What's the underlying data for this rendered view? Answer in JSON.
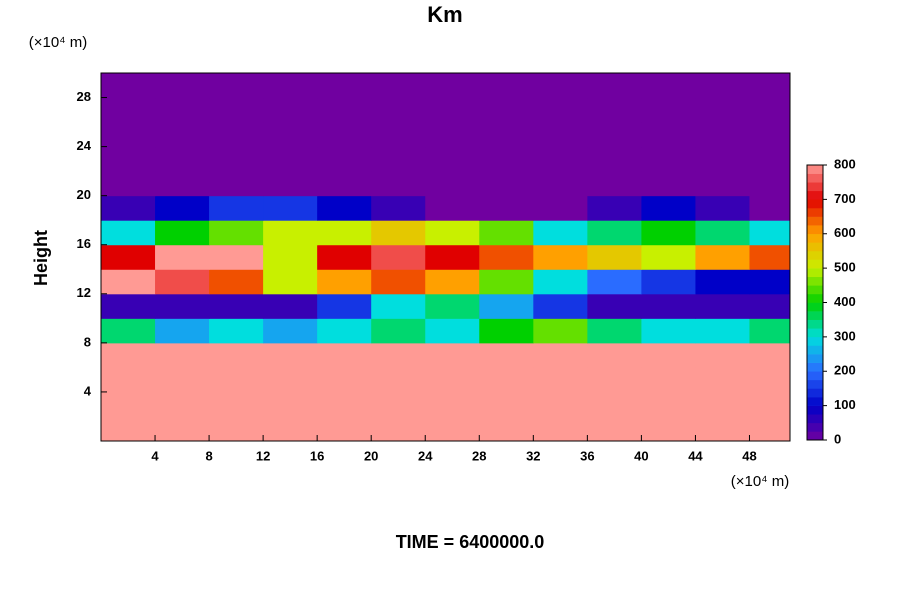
{
  "chart_data": {
    "type": "heatmap",
    "title": "Km",
    "x_unit": "(×10⁴ m)",
    "y_unit": "(×10⁴ m)",
    "y_label": "Height",
    "footer": "TIME = 6400000.0",
    "xlim": [
      0,
      51
    ],
    "xticks": [
      4,
      8,
      12,
      16,
      20,
      24,
      28,
      32,
      36,
      40,
      44,
      48
    ],
    "ylim": [
      0,
      30
    ],
    "yticks": [
      4,
      8,
      12,
      16,
      20,
      24,
      28
    ],
    "x_edges": [
      0,
      4,
      8,
      12,
      16,
      20,
      24,
      28,
      32,
      36,
      40,
      44,
      48,
      51
    ],
    "y_edges": [
      0,
      2,
      4,
      6,
      8,
      10,
      12,
      14,
      16,
      18,
      20,
      22,
      24,
      26,
      28,
      30
    ],
    "z": [
      [
        800,
        800,
        800,
        800,
        800,
        800,
        800,
        800,
        800,
        800,
        800,
        800,
        800
      ],
      [
        800,
        800,
        800,
        800,
        800,
        800,
        800,
        800,
        800,
        800,
        800,
        800,
        800
      ],
      [
        800,
        800,
        800,
        800,
        800,
        800,
        800,
        800,
        800,
        800,
        800,
        800,
        800
      ],
      [
        800,
        800,
        800,
        800,
        800,
        800,
        800,
        800,
        800,
        800,
        800,
        800,
        800
      ],
      [
        350,
        250,
        300,
        250,
        300,
        350,
        300,
        400,
        450,
        350,
        300,
        300,
        350
      ],
      [
        50,
        50,
        50,
        50,
        150,
        300,
        350,
        250,
        150,
        50,
        50,
        50,
        50
      ],
      [
        800,
        750,
        650,
        500,
        600,
        650,
        600,
        450,
        300,
        200,
        150,
        100,
        100
      ],
      [
        700,
        800,
        800,
        500,
        700,
        750,
        700,
        650,
        600,
        550,
        500,
        600,
        650
      ],
      [
        300,
        400,
        450,
        500,
        500,
        550,
        500,
        450,
        300,
        350,
        400,
        350,
        300
      ],
      [
        50,
        100,
        150,
        150,
        100,
        50,
        0,
        0,
        0,
        50,
        100,
        50,
        0
      ],
      [
        0,
        0,
        0,
        0,
        0,
        0,
        0,
        0,
        0,
        0,
        0,
        0,
        0
      ],
      [
        0,
        0,
        0,
        0,
        0,
        0,
        0,
        0,
        0,
        0,
        0,
        0,
        0
      ],
      [
        0,
        0,
        0,
        0,
        0,
        0,
        0,
        0,
        0,
        0,
        0,
        0,
        0
      ],
      [
        0,
        0,
        0,
        0,
        0,
        0,
        0,
        0,
        0,
        0,
        0,
        0,
        0
      ],
      [
        0,
        0,
        0,
        0,
        0,
        0,
        0,
        0,
        0,
        0,
        0,
        0,
        0
      ]
    ],
    "zlim": [
      0,
      800
    ],
    "zticks": [
      0,
      100,
      200,
      300,
      400,
      500,
      600,
      700,
      800
    ],
    "colorscale": [
      [
        0,
        "#7000a0"
      ],
      [
        100,
        "#0000c8"
      ],
      [
        200,
        "#2a6cff"
      ],
      [
        300,
        "#00dede"
      ],
      [
        400,
        "#00d000"
      ],
      [
        500,
        "#c8f000"
      ],
      [
        600,
        "#ffa000"
      ],
      [
        700,
        "#e00000"
      ],
      [
        800,
        "#ff9a94"
      ]
    ]
  }
}
